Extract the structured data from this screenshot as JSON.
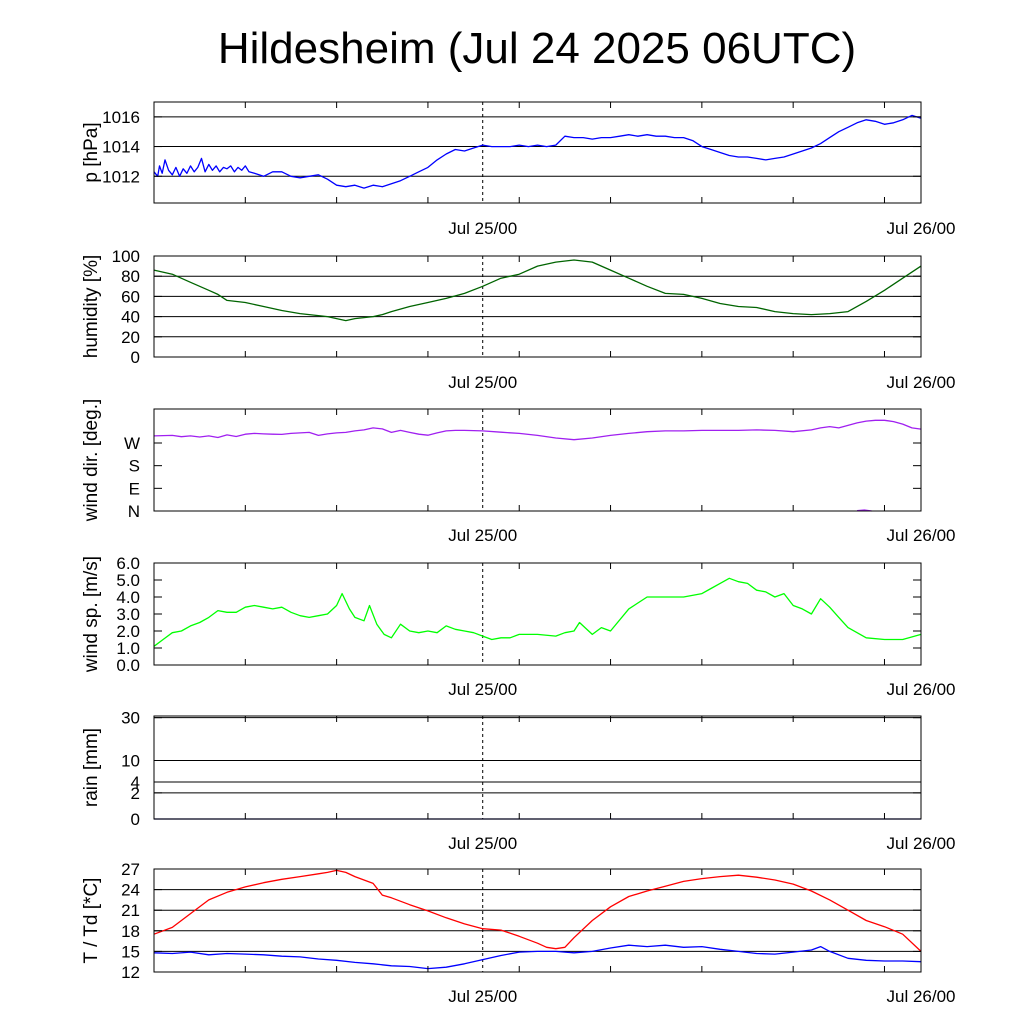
{
  "title": "Hildesheim (Jul 24 2025 06UTC)",
  "chart_data": [
    {
      "type": "line",
      "ylabel": "p [hPa]",
      "ylim": [
        1010.2,
        1017.0
      ],
      "yticks": [
        "1012",
        "1014",
        "1016"
      ],
      "ytick_values": [
        1012,
        1014,
        1016
      ],
      "grid_values": [
        1012,
        1014,
        1016
      ],
      "xlabels": [
        "Jul 25/00",
        "Jul 26/00"
      ],
      "xlim_hours": [
        0,
        42
      ],
      "series": [
        {
          "color": "#0000ff",
          "x": [
            0,
            0.2,
            0.3,
            0.45,
            0.6,
            0.8,
            1.0,
            1.2,
            1.4,
            1.6,
            1.8,
            2.0,
            2.2,
            2.4,
            2.6,
            2.8,
            3.0,
            3.2,
            3.4,
            3.6,
            3.8,
            4.0,
            4.2,
            4.4,
            4.6,
            4.8,
            5.0,
            5.2,
            5.5,
            6.0,
            6.5,
            7.0,
            7.5,
            8.0,
            8.5,
            9.0,
            9.5,
            10.0,
            10.5,
            11.0,
            11.5,
            12.0,
            12.5,
            13.0,
            13.5,
            14.0,
            14.5,
            15.0,
            15.5,
            16.0,
            16.5,
            17.0,
            17.5,
            18.0,
            18.5,
            19.0,
            19.5,
            20.0,
            20.5,
            21.0,
            21.5,
            22.0,
            22.5,
            23.0,
            23.5,
            24.0,
            24.5,
            25.0,
            25.5,
            26.0,
            26.5,
            27.0,
            27.5,
            28.0,
            28.5,
            29.0,
            29.5,
            30.0,
            30.5,
            31.0,
            31.5,
            32.0,
            32.5,
            33.0,
            33.5,
            34.0,
            34.5,
            35.0,
            35.5,
            36.0,
            36.5,
            37.0,
            37.5,
            38.0,
            38.5,
            39.0,
            39.5,
            40.0,
            40.5,
            41.0,
            41.5,
            42.0
          ],
          "y": [
            1012.3,
            1012.0,
            1012.7,
            1012.2,
            1013.1,
            1012.4,
            1012.1,
            1012.6,
            1012.0,
            1012.5,
            1012.2,
            1012.7,
            1012.3,
            1012.6,
            1013.2,
            1012.3,
            1012.8,
            1012.4,
            1012.7,
            1012.3,
            1012.6,
            1012.5,
            1012.7,
            1012.3,
            1012.6,
            1012.4,
            1012.7,
            1012.3,
            1012.2,
            1012.0,
            1012.3,
            1012.3,
            1012.0,
            1011.9,
            1012.0,
            1012.1,
            1011.8,
            1011.4,
            1011.3,
            1011.4,
            1011.2,
            1011.4,
            1011.3,
            1011.5,
            1011.7,
            1012.0,
            1012.3,
            1012.6,
            1013.1,
            1013.5,
            1013.8,
            1013.7,
            1013.9,
            1014.1,
            1014.0,
            1014.0,
            1014.0,
            1014.1,
            1014.0,
            1014.1,
            1014.0,
            1014.1,
            1014.7,
            1014.6,
            1014.6,
            1014.5,
            1014.6,
            1014.6,
            1014.7,
            1014.8,
            1014.7,
            1014.8,
            1014.7,
            1014.7,
            1014.6,
            1014.6,
            1014.4,
            1014.0,
            1013.8,
            1013.6,
            1013.4,
            1013.3,
            1013.3,
            1013.2,
            1013.1,
            1013.2,
            1013.3,
            1013.5,
            1013.7,
            1013.9,
            1014.2,
            1014.6,
            1015.0,
            1015.3,
            1015.6,
            1015.8,
            1015.7,
            1015.5,
            1015.6,
            1015.8,
            1016.1,
            1015.9
          ]
        }
      ]
    },
    {
      "type": "line",
      "ylabel": "humidity [%]",
      "ylim": [
        0,
        100
      ],
      "yticks": [
        "0",
        "20",
        "40",
        "60",
        "80",
        "100"
      ],
      "ytick_values": [
        0,
        20,
        40,
        60,
        80,
        100
      ],
      "grid_values": [
        20,
        40,
        60,
        80
      ],
      "xlabels": [
        "Jul 25/00",
        "Jul 26/00"
      ],
      "xlim_hours": [
        0,
        42
      ],
      "series": [
        {
          "color": "#006400",
          "x": [
            0,
            1,
            2,
            3,
            3.5,
            4,
            5,
            6,
            7,
            8,
            9,
            9.5,
            10,
            10.5,
            11,
            12,
            12.5,
            13,
            14,
            15,
            16,
            17,
            18,
            19,
            20,
            21,
            22,
            23,
            24,
            25,
            26,
            27,
            28,
            29,
            30,
            31,
            32,
            33,
            34,
            35,
            36,
            37,
            38,
            39,
            40,
            41,
            42
          ],
          "y": [
            86,
            82,
            74,
            66,
            62,
            56,
            54,
            50,
            46,
            43,
            41,
            40,
            38,
            36,
            38,
            40,
            42,
            45,
            50,
            54,
            58,
            63,
            70,
            78,
            82,
            90,
            94,
            96,
            94,
            86,
            78,
            70,
            63,
            62,
            58,
            53,
            50,
            49,
            45,
            43,
            42,
            43,
            45,
            55,
            66,
            78,
            90
          ]
        }
      ]
    },
    {
      "type": "line",
      "ylabel": "wind dir. [deg.]",
      "ylim": [
        0,
        405
      ],
      "yticks": [
        "N",
        "E",
        "S",
        "W"
      ],
      "ytick_values": [
        0,
        90,
        180,
        270
      ],
      "grid_values": [],
      "xlabels": [
        "Jul 25/00",
        "Jul 26/00"
      ],
      "xlim_hours": [
        0,
        42
      ],
      "series": [
        {
          "color": "#a020f0",
          "x": [
            0,
            1,
            1.5,
            2,
            2.5,
            3,
            3.5,
            4,
            4.5,
            5,
            5.5,
            6,
            6.5,
            7,
            7.5,
            8,
            8.5,
            9,
            9.5,
            10,
            10.5,
            11,
            11.5,
            12,
            12.5,
            13,
            13.5,
            14,
            14.5,
            15,
            15.5,
            16,
            16.5,
            17,
            18,
            19,
            20,
            21,
            22,
            23,
            24,
            25,
            26,
            27,
            28,
            29,
            30,
            31,
            32,
            33,
            34,
            35,
            36,
            36.5,
            37,
            37.5,
            38,
            38.5,
            39,
            39.5,
            40,
            40.5,
            41,
            41.5,
            42
          ],
          "y": [
            298,
            300,
            295,
            298,
            294,
            298,
            292,
            302,
            296,
            305,
            308,
            306,
            305,
            304,
            308,
            310,
            312,
            300,
            306,
            310,
            312,
            318,
            322,
            330,
            326,
            312,
            320,
            312,
            305,
            301,
            310,
            318,
            320,
            320,
            318,
            313,
            308,
            300,
            290,
            283,
            290,
            300,
            308,
            315,
            318,
            318,
            320,
            320,
            320,
            322,
            320,
            315,
            322,
            330,
            335,
            330,
            340,
            350,
            357,
            360,
            360,
            355,
            345,
            330,
            325
          ]
        },
        {
          "color": "#a020f0",
          "x": [
            38.5,
            38.9,
            39.3
          ],
          "y": [
            1,
            4,
            0
          ]
        }
      ]
    },
    {
      "type": "line",
      "ylabel": "wind sp. [m/s]",
      "ylim": [
        0,
        6.0
      ],
      "yticks": [
        "0.0",
        "1.0",
        "2.0",
        "3.0",
        "4.0",
        "5.0",
        "6.0"
      ],
      "ytick_values": [
        0,
        1,
        2,
        3,
        4,
        5,
        6
      ],
      "grid_values": [],
      "xlabels": [
        "Jul 25/00",
        "Jul 26/00"
      ],
      "xlim_hours": [
        0,
        42
      ],
      "series": [
        {
          "color": "#00ff00",
          "x": [
            0,
            0.5,
            1,
            1.5,
            2,
            2.5,
            3,
            3.5,
            4,
            4.5,
            5,
            5.5,
            6,
            6.5,
            7,
            7.5,
            8,
            8.5,
            9,
            9.5,
            10,
            10.3,
            10.7,
            11,
            11.5,
            11.8,
            12.2,
            12.6,
            13,
            13.5,
            14,
            14.5,
            15,
            15.5,
            16,
            16.5,
            17,
            17.5,
            18,
            18.5,
            19,
            19.5,
            20,
            21,
            22,
            22.5,
            23,
            23.3,
            23.6,
            24,
            24.5,
            25,
            26,
            27,
            28,
            29,
            30,
            30.5,
            31,
            31.5,
            32,
            32.5,
            33,
            33.5,
            34,
            34.5,
            35,
            35.5,
            36,
            36.5,
            37,
            37.5,
            38,
            39,
            40,
            41,
            42
          ],
          "y": [
            1.1,
            1.5,
            1.9,
            2.0,
            2.3,
            2.5,
            2.8,
            3.2,
            3.1,
            3.1,
            3.4,
            3.5,
            3.4,
            3.3,
            3.4,
            3.1,
            2.9,
            2.8,
            2.9,
            3.0,
            3.5,
            4.2,
            3.3,
            2.8,
            2.6,
            3.5,
            2.4,
            1.8,
            1.6,
            2.4,
            2.0,
            1.9,
            2.0,
            1.9,
            2.3,
            2.1,
            2.0,
            1.9,
            1.7,
            1.5,
            1.6,
            1.6,
            1.8,
            1.8,
            1.7,
            1.9,
            2.0,
            2.5,
            2.2,
            1.8,
            2.2,
            2.0,
            3.3,
            4.0,
            4.0,
            4.0,
            4.2,
            4.5,
            4.8,
            5.1,
            4.9,
            4.8,
            4.4,
            4.3,
            4.0,
            4.2,
            3.5,
            3.3,
            3.0,
            3.9,
            3.4,
            2.8,
            2.2,
            1.6,
            1.5,
            1.5,
            1.8
          ]
        }
      ]
    },
    {
      "type": "line",
      "ylabel": "rain [mm]",
      "ylim": [
        0,
        31
      ],
      "yticks": [
        "0",
        "2",
        "4",
        "10",
        "30"
      ],
      "ytick_values": [
        0,
        2,
        4,
        10,
        30
      ],
      "grid_values": [
        2,
        4,
        10,
        30
      ],
      "scale": "sqrt",
      "xlabels": [
        "Jul 25/00",
        "Jul 26/00"
      ],
      "xlim_hours": [
        0,
        42
      ],
      "series": [
        {
          "color": "#000080",
          "x": [
            0,
            42
          ],
          "y": [
            0,
            0
          ]
        }
      ]
    },
    {
      "type": "line",
      "ylabel": "T / Td [*C]",
      "ylim": [
        12,
        27
      ],
      "yticks": [
        "12",
        "15",
        "18",
        "21",
        "24",
        "27"
      ],
      "ytick_values": [
        12,
        15,
        18,
        21,
        24,
        27
      ],
      "grid_values": [
        15,
        18,
        21,
        24
      ],
      "xlabels": [
        "Jul 25/00",
        "Jul 26/00"
      ],
      "xlim_hours": [
        0,
        42
      ],
      "series": [
        {
          "color": "#ff0000",
          "x": [
            0,
            1,
            2,
            3,
            4,
            5,
            6,
            7,
            8,
            9,
            9.5,
            10,
            10.5,
            11,
            12,
            12.5,
            13,
            14,
            15,
            16,
            17,
            18,
            19,
            20,
            21,
            21.5,
            22,
            22.5,
            23,
            24,
            25,
            26,
            27,
            28,
            29,
            30,
            31,
            32,
            33,
            34,
            35,
            36,
            37,
            38,
            39,
            40,
            41,
            42
          ],
          "y": [
            17.5,
            18.5,
            20.5,
            22.5,
            23.6,
            24.4,
            25.0,
            25.5,
            25.9,
            26.3,
            26.5,
            26.8,
            26.5,
            25.9,
            24.9,
            23.2,
            22.8,
            21.8,
            20.9,
            19.9,
            19.0,
            18.3,
            18.1,
            17.2,
            16.2,
            15.6,
            15.4,
            15.6,
            17.0,
            19.5,
            21.5,
            23.0,
            23.8,
            24.5,
            25.2,
            25.6,
            25.9,
            26.1,
            25.8,
            25.4,
            24.8,
            23.8,
            22.5,
            21.0,
            19.5,
            18.6,
            17.5,
            15.0
          ]
        },
        {
          "color": "#0000ff",
          "x": [
            0,
            1,
            2,
            3,
            4,
            5,
            6,
            7,
            8,
            9,
            10,
            11,
            12,
            13,
            14,
            15,
            16,
            17,
            18,
            19,
            20,
            21,
            22,
            23,
            24,
            25,
            26,
            27,
            28,
            29,
            30,
            31,
            32,
            33,
            34,
            35,
            36,
            36.5,
            37,
            38,
            39,
            40,
            41,
            42
          ],
          "y": [
            14.8,
            14.7,
            14.9,
            14.5,
            14.7,
            14.6,
            14.5,
            14.3,
            14.2,
            13.9,
            13.7,
            13.4,
            13.2,
            12.9,
            12.8,
            12.5,
            12.7,
            13.2,
            13.8,
            14.4,
            14.9,
            15.0,
            15.0,
            14.8,
            15.0,
            15.5,
            15.9,
            15.7,
            15.9,
            15.6,
            15.7,
            15.3,
            15.0,
            14.7,
            14.6,
            14.9,
            15.2,
            15.7,
            15.0,
            14.0,
            13.7,
            13.6,
            13.6,
            13.5
          ]
        }
      ]
    }
  ]
}
